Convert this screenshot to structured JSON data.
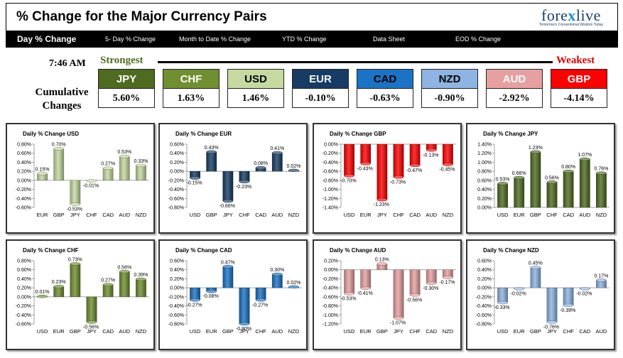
{
  "header": {
    "title": "% Change for the Major Currency Pairs",
    "logo_main_left": "fore",
    "logo_main_x": "x",
    "logo_main_right": "live",
    "logo_tagline": "Tomorrow's Conventional Wisdom Today"
  },
  "nav": {
    "items": [
      "Day % Change",
      "5- Day % Change",
      "Month to Date % Change",
      "YTD % Change",
      "Data Sheet",
      "EOD % Change"
    ]
  },
  "summary": {
    "time": "7:46 AM",
    "strongest": "Strongest",
    "weakest": "Weakest",
    "cumulative_label_1": "Cumulative",
    "cumulative_label_2": "Changes",
    "currencies": [
      {
        "code": "JPY",
        "value": "5.60%",
        "bg": "#4e6b20",
        "fg": "#ffffff"
      },
      {
        "code": "CHF",
        "value": "1.63%",
        "bg": "#6f8f30",
        "fg": "#ffffff"
      },
      {
        "code": "USD",
        "value": "1.46%",
        "bg": "#c6d9a0",
        "fg": "#000000"
      },
      {
        "code": "EUR",
        "value": "-0.10%",
        "bg": "#163c64",
        "fg": "#ffffff"
      },
      {
        "code": "CAD",
        "value": "-0.63%",
        "bg": "#1a73c4",
        "fg": "#000000"
      },
      {
        "code": "NZD",
        "value": "-0.90%",
        "bg": "#8db4e2",
        "fg": "#000000"
      },
      {
        "code": "AUD",
        "value": "-2.92%",
        "bg": "#e6a0a0",
        "fg": "#ffffff"
      },
      {
        "code": "GBP",
        "value": "-4.14%",
        "bg": "#ff0000",
        "fg": "#ffffff"
      }
    ]
  },
  "chart_data": [
    {
      "type": "bar",
      "title": "Daily % Change USD",
      "categories": [
        "EUR",
        "GBP",
        "JPY",
        "CHF",
        "CAD",
        "AUD",
        "NZD"
      ],
      "values": [
        0.15,
        0.7,
        -0.53,
        -0.01,
        0.27,
        0.53,
        0.33
      ],
      "labels": [
        "0.15%",
        "0.70%",
        "-0.53%",
        "-0.01%",
        "0.27%",
        "0.53%",
        "0.33%"
      ],
      "yticks": [
        "0.80%",
        "0.60%",
        "0.40%",
        "0.20%",
        "0.00%",
        "-0.20%",
        "-0.40%",
        "-0.60%"
      ],
      "ylim": [
        -0.6,
        0.8
      ],
      "color": "#c6d9a0"
    },
    {
      "type": "bar",
      "title": "Daily % Change EUR",
      "categories": [
        "USD",
        "GBP",
        "JPY",
        "CHF",
        "CAD",
        "AUD",
        "NZD"
      ],
      "values": [
        -0.15,
        0.43,
        -0.66,
        -0.23,
        0.08,
        0.41,
        0.02
      ],
      "labels": [
        "-0.15%",
        "0.43%",
        "-0.66%",
        "-0.23%",
        "0.08%",
        "0.41%",
        "0.02%"
      ],
      "yticks": [
        "0.60%",
        "0.40%",
        "0.20%",
        "0.00%",
        "-0.20%",
        "-0.40%",
        "-0.60%",
        "-0.80%"
      ],
      "ylim": [
        -0.8,
        0.6
      ],
      "color": "#163c64"
    },
    {
      "type": "bar",
      "title": "Daily % Change GBP",
      "categories": [
        "USD",
        "EUR",
        "JPY",
        "CHF",
        "CAD",
        "AUD",
        "NZD"
      ],
      "values": [
        -0.7,
        -0.43,
        -1.23,
        -0.73,
        -0.47,
        -0.13,
        -0.45
      ],
      "labels": [
        "-0.70%",
        "-0.43%",
        "-1.23%",
        "-0.73%",
        "-0.47%",
        "-0.13%",
        "-0.45%"
      ],
      "yticks": [
        "0.00%",
        "-0.20%",
        "-0.40%",
        "-0.60%",
        "-0.80%",
        "-1.00%",
        "-1.20%",
        "-1.40%"
      ],
      "ylim": [
        -1.4,
        0.0
      ],
      "color": "#ff0000"
    },
    {
      "type": "bar",
      "title": "Daily % Change JPY",
      "categories": [
        "USD",
        "EUR",
        "GBP",
        "CHF",
        "CAD",
        "AUD",
        "NZD"
      ],
      "values": [
        0.53,
        0.66,
        1.23,
        0.56,
        0.8,
        1.07,
        0.76
      ],
      "labels": [
        "0.53%",
        "0.66%",
        "1.23%",
        "0.56%",
        "0.80%",
        "1.07%",
        "0.76%"
      ],
      "yticks": [
        "1.40%",
        "1.20%",
        "1.00%",
        "0.80%",
        "0.60%",
        "0.40%",
        "0.20%",
        "0.00%"
      ],
      "ylim": [
        0.0,
        1.4
      ],
      "color": "#4e6b20"
    },
    {
      "type": "bar",
      "title": "Daily % Change CHF",
      "categories": [
        "USD",
        "EUR",
        "GBP",
        "JPY",
        "CAD",
        "AUD",
        "NZD"
      ],
      "values": [
        0.01,
        0.23,
        0.73,
        -0.56,
        0.27,
        0.56,
        0.39
      ],
      "labels": [
        "0.01%",
        "0.23%",
        "0.73%",
        "-0.56%",
        "0.27%",
        "0.56%",
        "0.39%"
      ],
      "yticks": [
        "0.80%",
        "0.60%",
        "0.40%",
        "0.20%",
        "0.00%",
        "-0.20%",
        "-0.40%",
        "-0.60%"
      ],
      "ylim": [
        -0.6,
        0.8
      ],
      "color": "#6f8f30"
    },
    {
      "type": "bar",
      "title": "Daily % Change CAD",
      "categories": [
        "USD",
        "EUR",
        "GBP",
        "JPY",
        "CHF",
        "AUD",
        "NZD"
      ],
      "values": [
        -0.27,
        -0.08,
        0.47,
        -0.8,
        -0.27,
        0.3,
        0.02
      ],
      "labels": [
        "-0.27%",
        "-0.08%",
        "0.47%",
        "-0.80%",
        "-0.27%",
        "0.30%",
        "0.02%"
      ],
      "yticks": [
        "0.60%",
        "0.40%",
        "0.20%",
        "0.00%",
        "-0.20%",
        "-0.40%",
        "-0.60%",
        "-0.80%"
      ],
      "ylim": [
        -0.8,
        0.6
      ],
      "color": "#1a73c4"
    },
    {
      "type": "bar",
      "title": "Daily % Change AUD",
      "categories": [
        "USD",
        "EUR",
        "GBP",
        "JPY",
        "CHF",
        "CAD",
        "NZD"
      ],
      "values": [
        -0.53,
        -0.41,
        0.13,
        -1.07,
        -0.56,
        -0.3,
        -0.17
      ],
      "labels": [
        "-0.53%",
        "-0.41%",
        "0.13%",
        "-1.07%",
        "-0.56%",
        "-0.30%",
        "-0.17%"
      ],
      "yticks": [
        "0.20%",
        "0.00%",
        "-0.20%",
        "-0.40%",
        "-0.60%",
        "-0.80%",
        "-1.00%",
        "-1.20%"
      ],
      "ylim": [
        -1.2,
        0.2
      ],
      "color": "#e6a0a0"
    },
    {
      "type": "bar",
      "title": "Daily % Change NZD",
      "categories": [
        "USD",
        "EUR",
        "GBP",
        "JPY",
        "CHF",
        "CAD",
        "AUD"
      ],
      "values": [
        -0.33,
        -0.02,
        0.45,
        -0.76,
        -0.39,
        -0.02,
        0.17
      ],
      "labels": [
        "-0.33%",
        "-0.02%",
        "0.45%",
        "-0.76%",
        "-0.39%",
        "-0.02%",
        "0.17%"
      ],
      "yticks": [
        "0.60%",
        "0.40%",
        "0.20%",
        "0.00%",
        "-0.20%",
        "-0.40%",
        "-0.60%",
        "-0.80%"
      ],
      "ylim": [
        -0.8,
        0.6
      ],
      "color": "#8db4e2"
    }
  ]
}
